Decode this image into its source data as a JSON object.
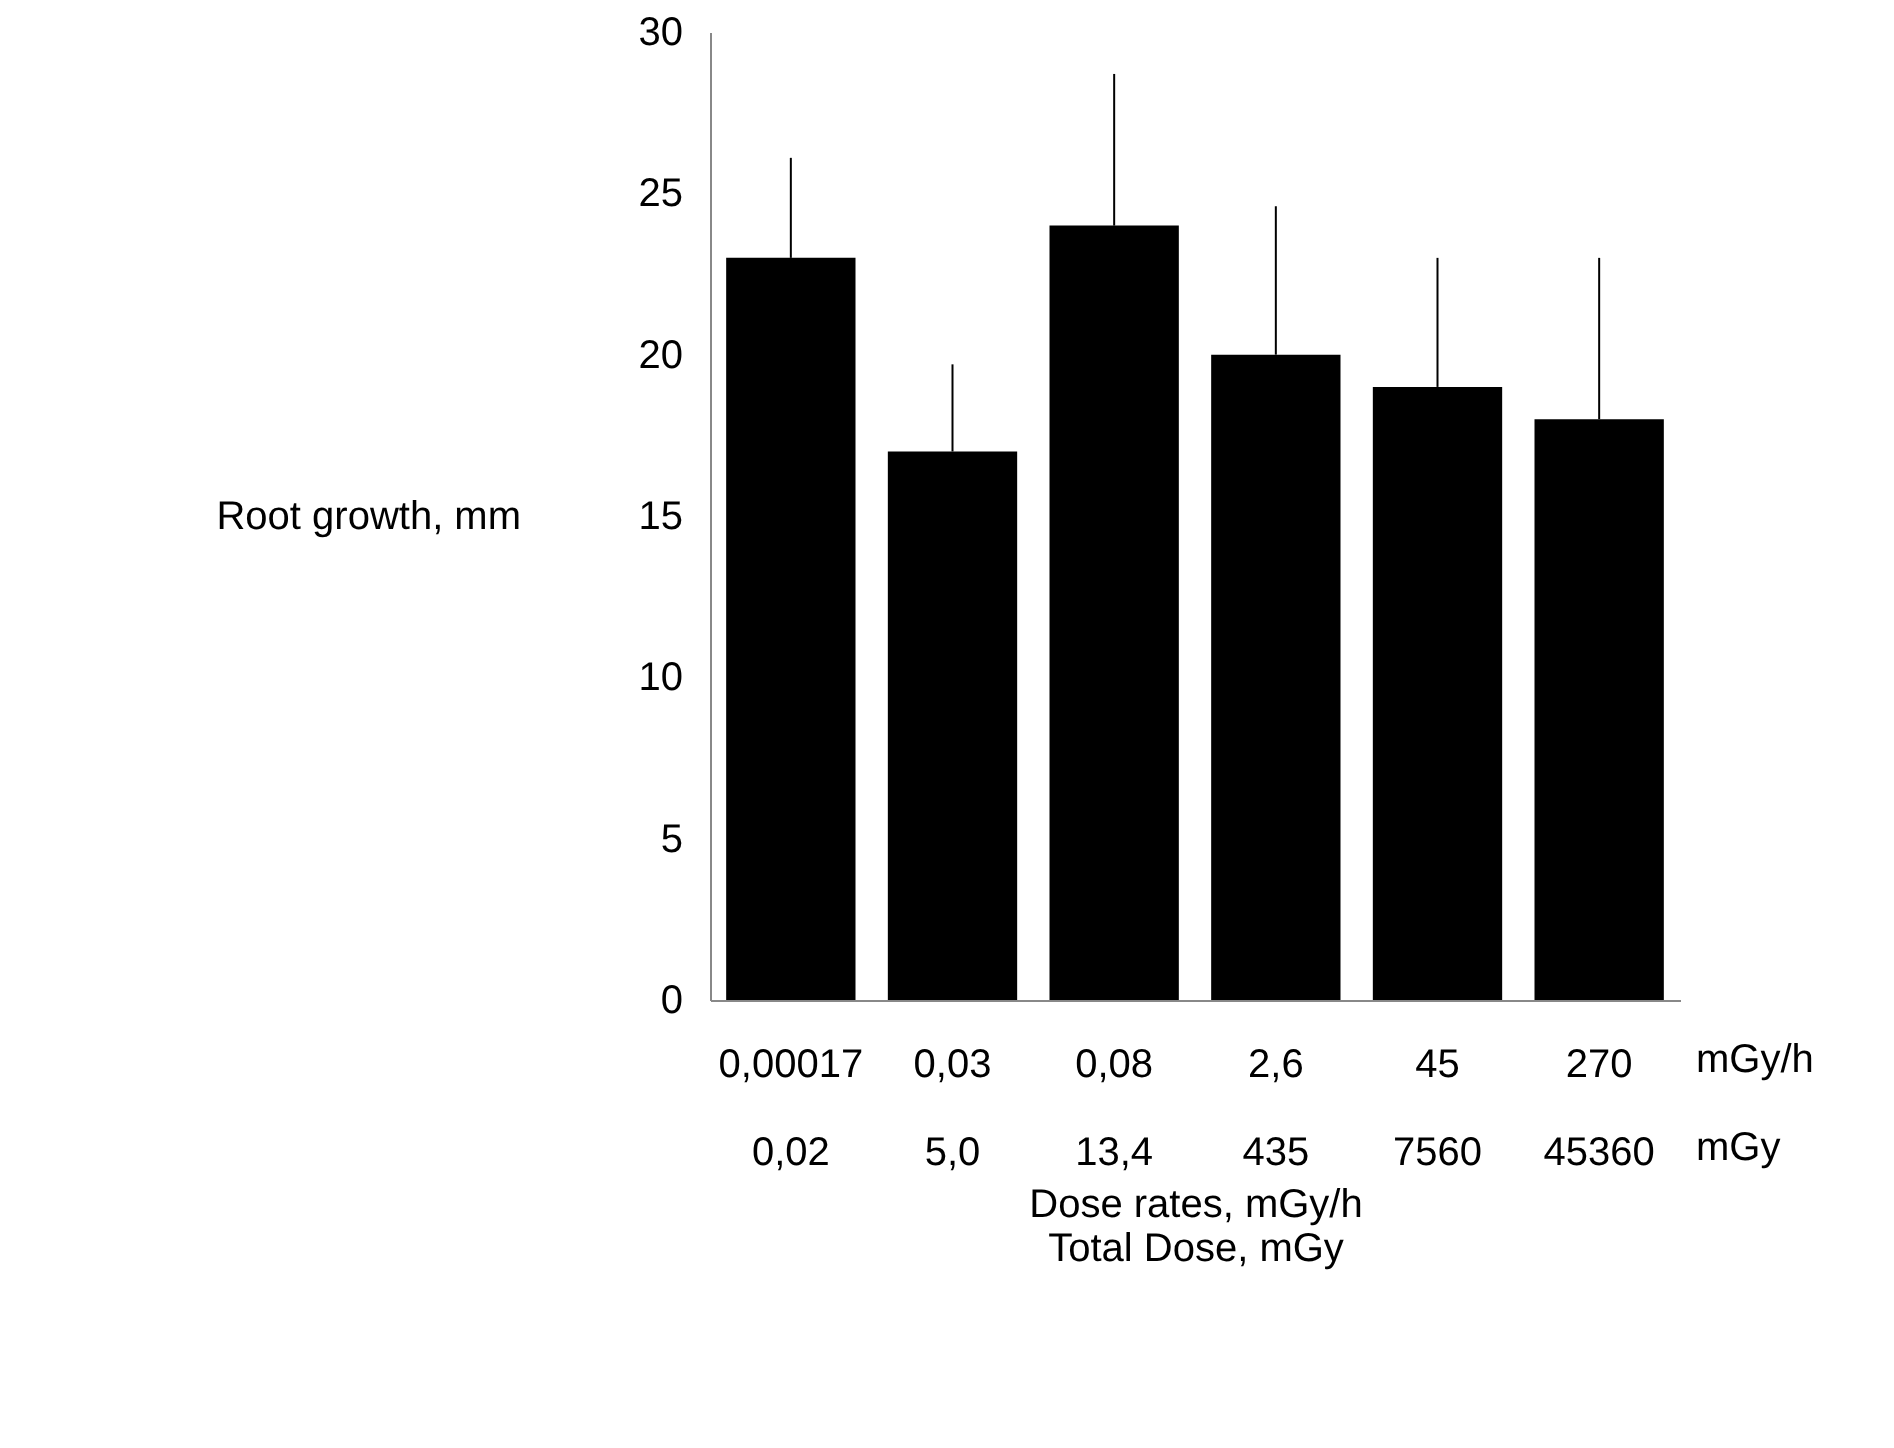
{
  "chart_data": {
    "type": "bar",
    "ylabel": "Root growth, mm",
    "xlabel": "Dose rates, mGy/h\nTotal Dose, mGy",
    "categories": [
      "0,00017\n0,02",
      "0,03\n5,0",
      "0,08\n13,4",
      "2,6\n435",
      "45\n7560",
      "270\n45360"
    ],
    "values": [
      23,
      17,
      24,
      20,
      19,
      18
    ],
    "errors": [
      [
        23,
        26.1
      ],
      [
        17,
        19.7
      ],
      [
        24,
        28.7
      ],
      [
        20,
        24.6
      ],
      [
        19,
        23.0
      ],
      [
        18,
        23.0
      ]
    ],
    "color": "#000000",
    "ylim": [
      0,
      30
    ],
    "yticks": [
      0,
      5,
      10,
      15,
      20,
      25,
      30
    ],
    "grid": false,
    "annotations": [
      "mGy/h",
      "mGy"
    ]
  }
}
